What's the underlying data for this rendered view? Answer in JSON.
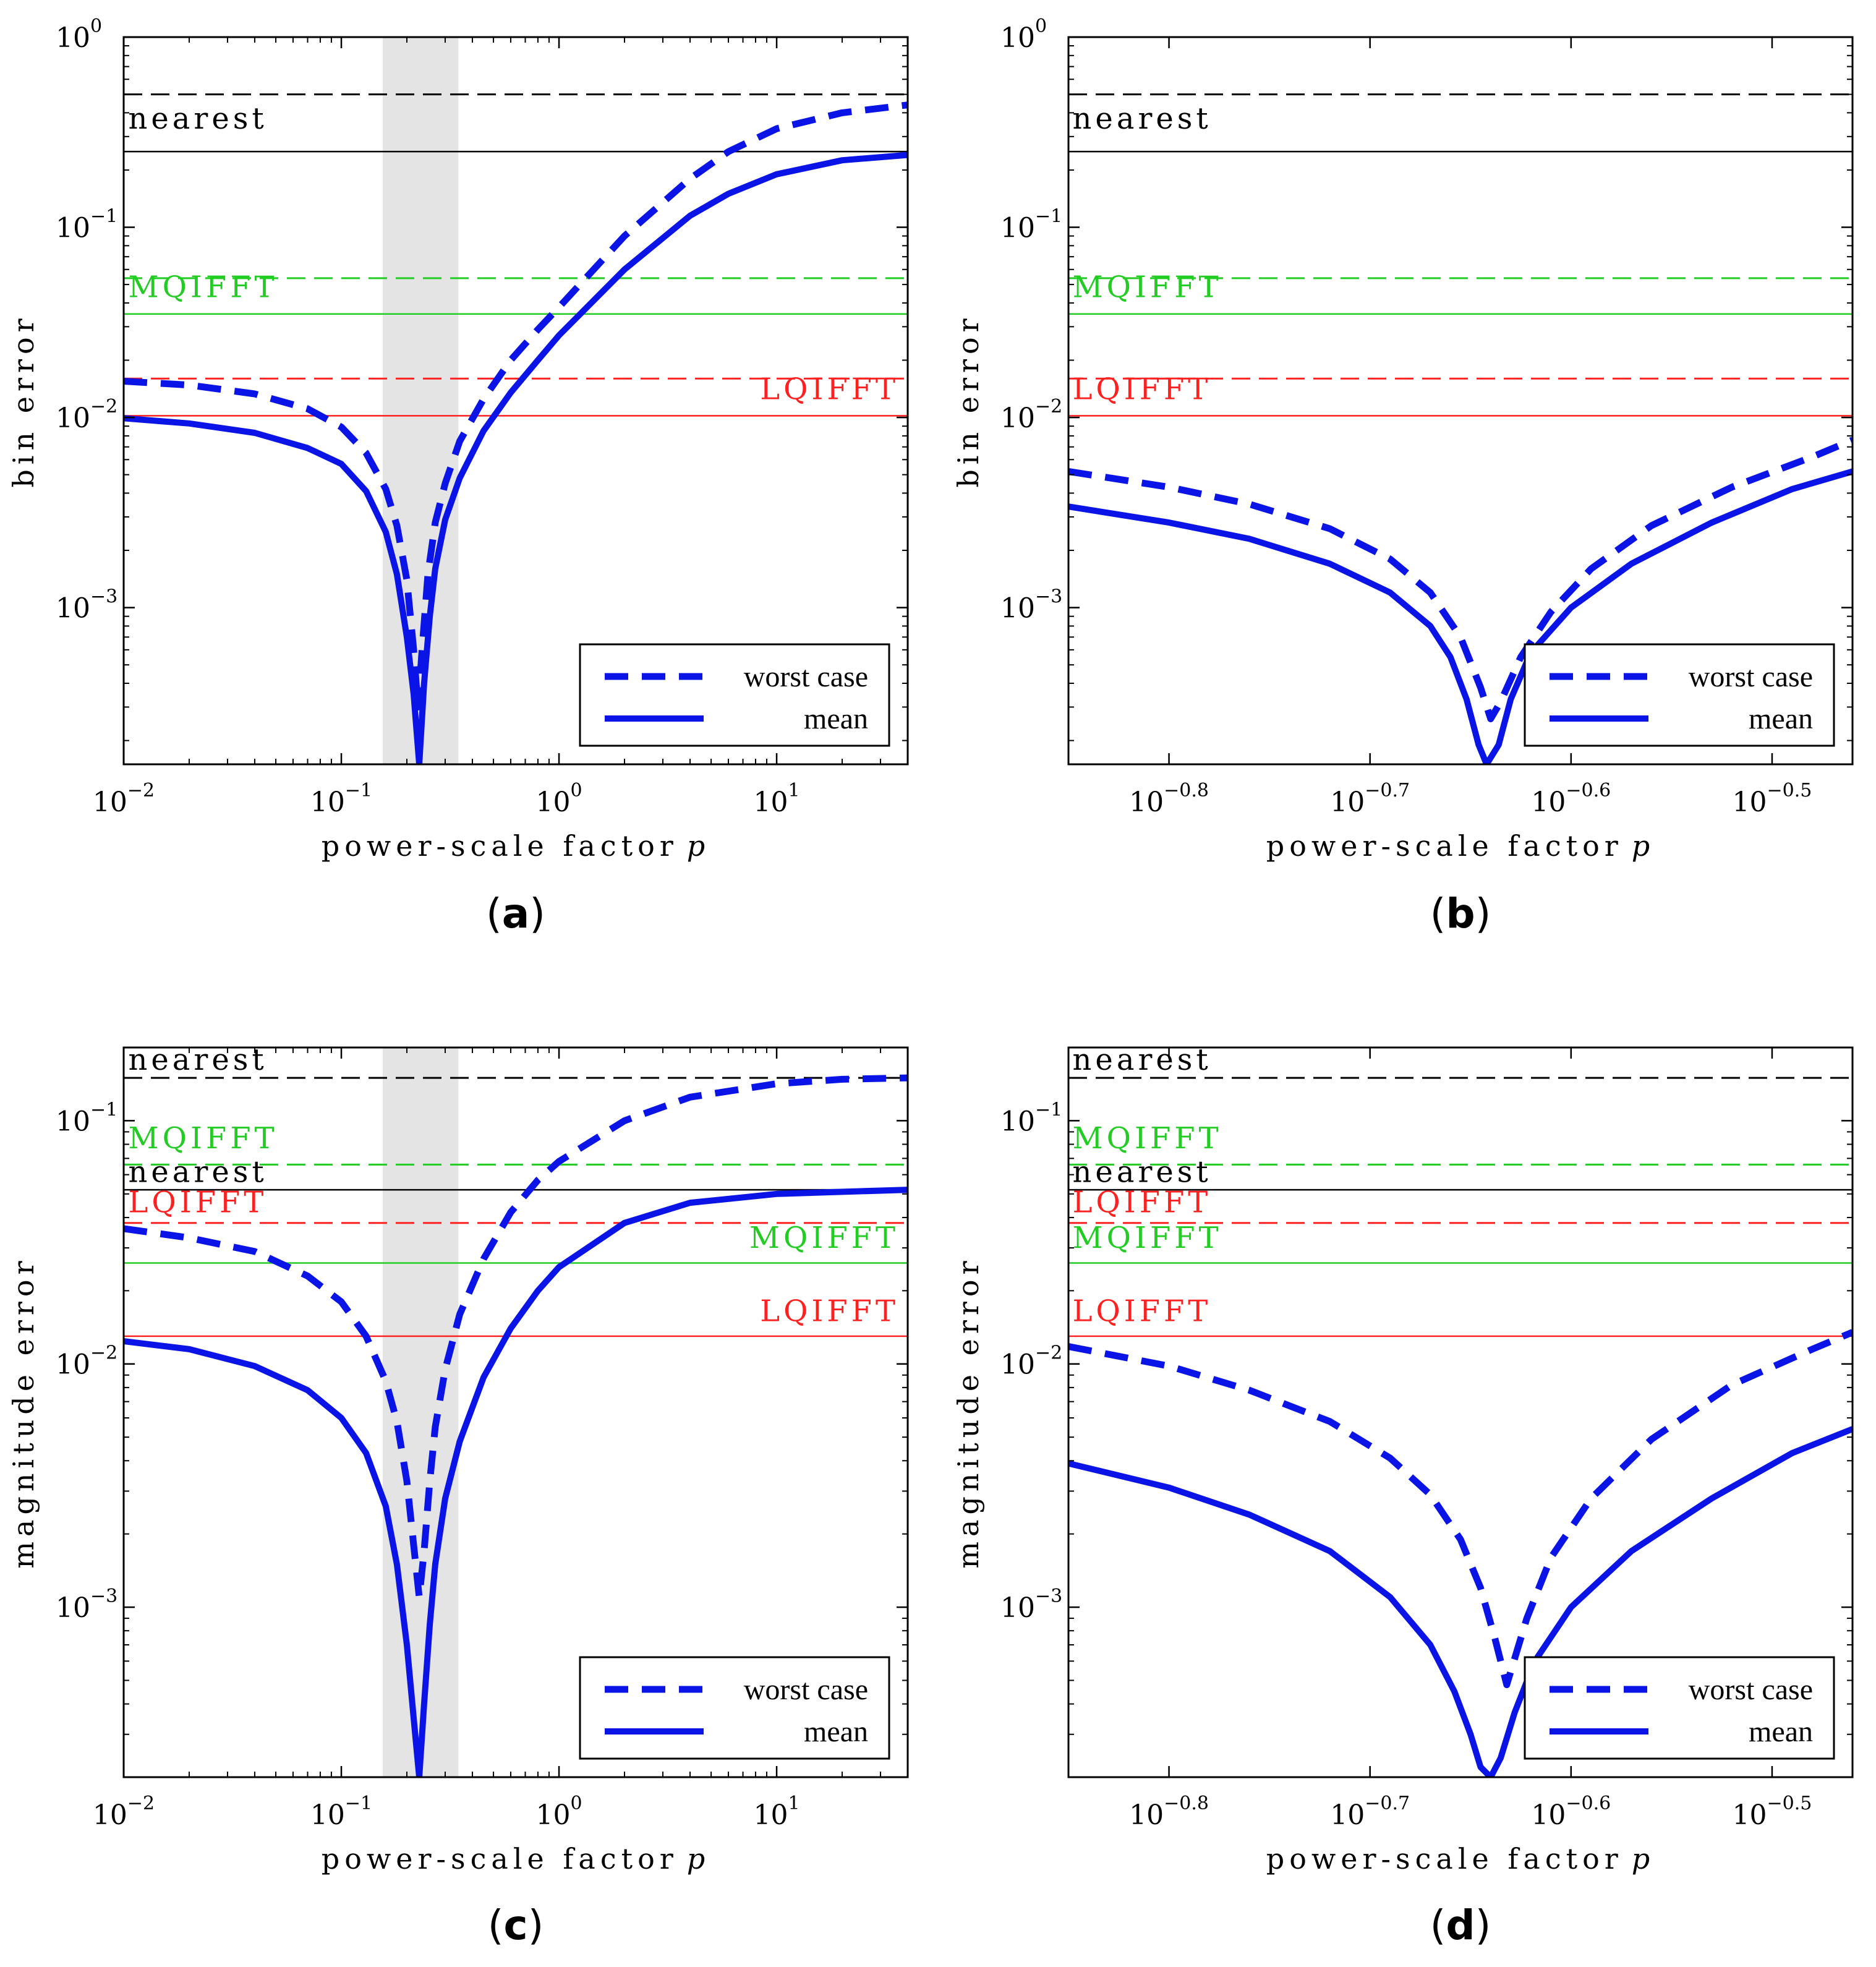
{
  "figure": {
    "panel_letters": [
      "a",
      "b",
      "c",
      "d"
    ]
  },
  "colors": {
    "curve": "#0a14e6",
    "nearest": "#000000",
    "mqifft": "#22cc22",
    "lqifft": "#ff2020",
    "shade": "#e4e4e4"
  },
  "chart_data": [
    {
      "id": "a",
      "type": "line",
      "panel_letter": "a",
      "xscale": "log",
      "yscale": "log",
      "xlabel": "power-scale factor",
      "xlabel_var": "p",
      "ylabel": "bin error",
      "xlim": [
        0.01,
        40
      ],
      "ylim": [
        0.00015,
        1
      ],
      "xticks": [
        {
          "value": 0.01,
          "base": "10",
          "exp": "−2"
        },
        {
          "value": 0.1,
          "base": "10",
          "exp": "−1"
        },
        {
          "value": 1,
          "base": "10",
          "exp": "0"
        },
        {
          "value": 10,
          "base": "10",
          "exp": "1"
        }
      ],
      "yticks": [
        {
          "value": 1,
          "base": "10",
          "exp": "0"
        },
        {
          "value": 0.1,
          "base": "10",
          "exp": "−1"
        },
        {
          "value": 0.01,
          "base": "10",
          "exp": "−2"
        },
        {
          "value": 0.001,
          "base": "10",
          "exp": "−3"
        }
      ],
      "shaded_region": [
        0.155,
        0.345
      ],
      "reference_lines": [
        {
          "method": "nearest",
          "stat": "worst case",
          "value": 0.5,
          "color": "#000000",
          "style": "dashed"
        },
        {
          "method": "nearest",
          "stat": "mean",
          "value": 0.25,
          "color": "#000000",
          "style": "solid"
        },
        {
          "method": "MQIFFT",
          "stat": "worst case",
          "value": 0.054,
          "color": "#22cc22",
          "style": "dashed"
        },
        {
          "method": "MQIFFT",
          "stat": "mean",
          "value": 0.035,
          "color": "#22cc22",
          "style": "solid"
        },
        {
          "method": "LQIFFT",
          "stat": "worst case",
          "value": 0.016,
          "color": "#ff2020",
          "style": "dashed"
        },
        {
          "method": "LQIFFT",
          "stat": "mean",
          "value": 0.0102,
          "color": "#ff2020",
          "style": "solid"
        }
      ],
      "reference_labels": [
        {
          "text": "nearest",
          "color": "#000000",
          "x": 0.0105,
          "y": 0.33,
          "anchor": "start"
        },
        {
          "text": "MQIFFT",
          "color": "#22cc22",
          "x": 0.0105,
          "y": 0.043,
          "anchor": "start"
        },
        {
          "text": "LQIFFT",
          "color": "#ff2020",
          "x": 38,
          "y": 0.0125,
          "anchor": "end"
        }
      ],
      "series": [
        {
          "name": "worst case",
          "style": "dashed",
          "x": [
            0.01,
            0.02,
            0.04,
            0.07,
            0.1,
            0.13,
            0.16,
            0.18,
            0.2,
            0.215,
            0.225,
            0.235,
            0.25,
            0.27,
            0.3,
            0.35,
            0.45,
            0.6,
            0.8,
            1,
            2,
            4,
            6,
            10,
            20,
            40
          ],
          "y": [
            0.0155,
            0.0148,
            0.0133,
            0.0111,
            0.0089,
            0.0065,
            0.0042,
            0.0027,
            0.0014,
            0.0006,
            0.0003,
            0.0006,
            0.0015,
            0.0028,
            0.0045,
            0.0075,
            0.0125,
            0.02,
            0.029,
            0.038,
            0.09,
            0.18,
            0.25,
            0.33,
            0.4,
            0.44
          ]
        },
        {
          "name": "mean",
          "style": "solid",
          "x": [
            0.01,
            0.02,
            0.04,
            0.07,
            0.1,
            0.13,
            0.16,
            0.18,
            0.2,
            0.215,
            0.228,
            0.24,
            0.255,
            0.27,
            0.3,
            0.35,
            0.45,
            0.6,
            0.8,
            1,
            2,
            4,
            6,
            10,
            20,
            40
          ],
          "y": [
            0.0099,
            0.0093,
            0.0083,
            0.0069,
            0.0057,
            0.0041,
            0.0025,
            0.0015,
            0.0007,
            0.00035,
            0.00015,
            0.0004,
            0.0009,
            0.0016,
            0.0029,
            0.0048,
            0.0085,
            0.0135,
            0.02,
            0.027,
            0.06,
            0.115,
            0.15,
            0.19,
            0.225,
            0.24
          ]
        }
      ],
      "legend": {
        "placement": "bottom-right",
        "entries": [
          "worst case",
          "mean"
        ]
      }
    },
    {
      "id": "b",
      "type": "line",
      "panel_letter": "b",
      "xscale": "log",
      "yscale": "log",
      "xlabel": "power-scale factor",
      "xlabel_var": "p",
      "ylabel": "bin error",
      "xlim": [
        -0.85,
        -0.46
      ],
      "xlim_units": "log10 of p",
      "ylim": [
        0.00015,
        1
      ],
      "xticks": [
        {
          "value": -0.8,
          "base": "10",
          "exp": "−0.8"
        },
        {
          "value": -0.7,
          "base": "10",
          "exp": "−0.7"
        },
        {
          "value": -0.6,
          "base": "10",
          "exp": "−0.6"
        },
        {
          "value": -0.5,
          "base": "10",
          "exp": "−0.5"
        }
      ],
      "yticks": [
        {
          "value": 1,
          "base": "10",
          "exp": "0"
        },
        {
          "value": 0.1,
          "base": "10",
          "exp": "−1"
        },
        {
          "value": 0.01,
          "base": "10",
          "exp": "−2"
        },
        {
          "value": 0.001,
          "base": "10",
          "exp": "−3"
        }
      ],
      "reference_lines": [
        {
          "method": "nearest",
          "stat": "worst case",
          "value": 0.5,
          "color": "#000000",
          "style": "dashed"
        },
        {
          "method": "nearest",
          "stat": "mean",
          "value": 0.25,
          "color": "#000000",
          "style": "solid"
        },
        {
          "method": "MQIFFT",
          "stat": "worst case",
          "value": 0.054,
          "color": "#22cc22",
          "style": "dashed"
        },
        {
          "method": "MQIFFT",
          "stat": "mean",
          "value": 0.035,
          "color": "#22cc22",
          "style": "solid"
        },
        {
          "method": "LQIFFT",
          "stat": "worst case",
          "value": 0.016,
          "color": "#ff2020",
          "style": "dashed"
        },
        {
          "method": "LQIFFT",
          "stat": "mean",
          "value": 0.0102,
          "color": "#ff2020",
          "style": "solid"
        }
      ],
      "reference_labels": [
        {
          "text": "nearest",
          "color": "#000000",
          "x": -0.848,
          "y": 0.33,
          "anchor": "start"
        },
        {
          "text": "MQIFFT",
          "color": "#22cc22",
          "x": -0.848,
          "y": 0.043,
          "anchor": "start"
        },
        {
          "text": "LQIFFT",
          "color": "#ff2020",
          "x": -0.848,
          "y": 0.0125,
          "anchor": "start"
        }
      ],
      "series": [
        {
          "name": "worst case",
          "style": "dashed",
          "x": [
            -0.85,
            -0.8,
            -0.76,
            -0.72,
            -0.69,
            -0.67,
            -0.655,
            -0.645,
            -0.64,
            -0.635,
            -0.625,
            -0.61,
            -0.59,
            -0.56,
            -0.52,
            -0.48,
            -0.46
          ],
          "y": [
            0.0052,
            0.0043,
            0.0035,
            0.0026,
            0.0018,
            0.0012,
            0.0007,
            0.00038,
            0.00026,
            0.00032,
            0.00055,
            0.00095,
            0.0016,
            0.0027,
            0.0043,
            0.0062,
            0.0076
          ]
        },
        {
          "name": "mean",
          "style": "solid",
          "x": [
            -0.85,
            -0.8,
            -0.76,
            -0.72,
            -0.69,
            -0.67,
            -0.66,
            -0.652,
            -0.646,
            -0.642,
            -0.636,
            -0.63,
            -0.62,
            -0.6,
            -0.57,
            -0.53,
            -0.49,
            -0.46
          ],
          "y": [
            0.0034,
            0.0028,
            0.0023,
            0.0017,
            0.0012,
            0.0008,
            0.00055,
            0.00033,
            0.00019,
            0.00015,
            0.00019,
            0.00033,
            0.00058,
            0.001,
            0.0017,
            0.0028,
            0.0042,
            0.0052
          ]
        }
      ],
      "legend": {
        "placement": "bottom-right",
        "entries": [
          "worst case",
          "mean"
        ]
      }
    },
    {
      "id": "c",
      "type": "line",
      "panel_letter": "c",
      "xscale": "log",
      "yscale": "log",
      "xlabel": "power-scale factor",
      "xlabel_var": "p",
      "ylabel": "magnitude error",
      "xlim": [
        0.01,
        40
      ],
      "ylim": [
        0.0002,
        0.2
      ],
      "xticks": [
        {
          "value": 0.01,
          "base": "10",
          "exp": "−2"
        },
        {
          "value": 0.1,
          "base": "10",
          "exp": "−1"
        },
        {
          "value": 1,
          "base": "10",
          "exp": "0"
        },
        {
          "value": 10,
          "base": "10",
          "exp": "1"
        }
      ],
      "yticks": [
        {
          "value": 0.1,
          "base": "10",
          "exp": "−1"
        },
        {
          "value": 0.01,
          "base": "10",
          "exp": "−2"
        },
        {
          "value": 0.001,
          "base": "10",
          "exp": "−3"
        }
      ],
      "shaded_region": [
        0.155,
        0.345
      ],
      "reference_lines": [
        {
          "method": "nearest",
          "stat": "worst case",
          "value": 0.15,
          "color": "#000000",
          "style": "dashed"
        },
        {
          "method": "MQIFFT",
          "stat": "worst case",
          "value": 0.066,
          "color": "#22cc22",
          "style": "dashed"
        },
        {
          "method": "nearest",
          "stat": "mean",
          "value": 0.052,
          "color": "#000000",
          "style": "solid"
        },
        {
          "method": "LQIFFT",
          "stat": "worst case",
          "value": 0.038,
          "color": "#ff2020",
          "style": "dashed"
        },
        {
          "method": "MQIFFT",
          "stat": "mean",
          "value": 0.026,
          "color": "#22cc22",
          "style": "solid"
        },
        {
          "method": "LQIFFT",
          "stat": "mean",
          "value": 0.013,
          "color": "#ff2020",
          "style": "solid"
        }
      ],
      "reference_labels": [
        {
          "text": "nearest",
          "color": "#000000",
          "x": 0.0105,
          "y": 0.162,
          "anchor": "start"
        },
        {
          "text": "MQIFFT",
          "color": "#22cc22",
          "x": 0.0105,
          "y": 0.077,
          "anchor": "start"
        },
        {
          "text": "nearest",
          "color": "#000000",
          "x": 0.0105,
          "y": 0.056,
          "anchor": "start"
        },
        {
          "text": "LQIFFT",
          "color": "#ff2020",
          "x": 0.0105,
          "y": 0.042,
          "anchor": "start"
        },
        {
          "text": "MQIFFT",
          "color": "#22cc22",
          "x": 38,
          "y": 0.03,
          "anchor": "end"
        },
        {
          "text": "LQIFFT",
          "color": "#ff2020",
          "x": 38,
          "y": 0.015,
          "anchor": "end"
        }
      ],
      "series": [
        {
          "name": "worst case",
          "style": "dashed",
          "x": [
            0.01,
            0.02,
            0.04,
            0.07,
            0.1,
            0.13,
            0.16,
            0.18,
            0.2,
            0.215,
            0.228,
            0.24,
            0.255,
            0.27,
            0.3,
            0.35,
            0.45,
            0.6,
            0.8,
            1,
            2,
            4,
            10,
            20,
            40
          ],
          "y": [
            0.036,
            0.033,
            0.029,
            0.023,
            0.018,
            0.013,
            0.0085,
            0.0058,
            0.0033,
            0.0018,
            0.0011,
            0.0017,
            0.0033,
            0.0055,
            0.0095,
            0.016,
            0.027,
            0.042,
            0.057,
            0.068,
            0.1,
            0.125,
            0.142,
            0.148,
            0.15
          ]
        },
        {
          "name": "mean",
          "style": "solid",
          "x": [
            0.01,
            0.02,
            0.04,
            0.07,
            0.1,
            0.13,
            0.16,
            0.18,
            0.2,
            0.215,
            0.228,
            0.24,
            0.255,
            0.27,
            0.3,
            0.35,
            0.45,
            0.6,
            0.8,
            1,
            2,
            4,
            10,
            20,
            40
          ],
          "y": [
            0.0124,
            0.0115,
            0.0098,
            0.0078,
            0.006,
            0.0043,
            0.0026,
            0.0015,
            0.0007,
            0.00035,
            0.0002,
            0.0004,
            0.00085,
            0.0015,
            0.0028,
            0.0048,
            0.0088,
            0.014,
            0.02,
            0.025,
            0.038,
            0.046,
            0.05,
            0.051,
            0.052
          ]
        }
      ],
      "legend": {
        "placement": "bottom-right",
        "entries": [
          "worst case",
          "mean"
        ]
      }
    },
    {
      "id": "d",
      "type": "line",
      "panel_letter": "d",
      "xscale": "log",
      "yscale": "log",
      "xlabel": "power-scale factor",
      "xlabel_var": "p",
      "ylabel": "magnitude error",
      "xlim": [
        -0.85,
        -0.46
      ],
      "xlim_units": "log10 of p",
      "ylim": [
        0.0002,
        0.2
      ],
      "xticks": [
        {
          "value": -0.8,
          "base": "10",
          "exp": "−0.8"
        },
        {
          "value": -0.7,
          "base": "10",
          "exp": "−0.7"
        },
        {
          "value": -0.6,
          "base": "10",
          "exp": "−0.6"
        },
        {
          "value": -0.5,
          "base": "10",
          "exp": "−0.5"
        }
      ],
      "yticks": [
        {
          "value": 0.1,
          "base": "10",
          "exp": "−1"
        },
        {
          "value": 0.01,
          "base": "10",
          "exp": "−2"
        },
        {
          "value": 0.001,
          "base": "10",
          "exp": "−3"
        }
      ],
      "reference_lines": [
        {
          "method": "nearest",
          "stat": "worst case",
          "value": 0.15,
          "color": "#000000",
          "style": "dashed"
        },
        {
          "method": "MQIFFT",
          "stat": "worst case",
          "value": 0.066,
          "color": "#22cc22",
          "style": "dashed"
        },
        {
          "method": "nearest",
          "stat": "mean",
          "value": 0.052,
          "color": "#000000",
          "style": "solid"
        },
        {
          "method": "LQIFFT",
          "stat": "worst case",
          "value": 0.038,
          "color": "#ff2020",
          "style": "dashed"
        },
        {
          "method": "MQIFFT",
          "stat": "mean",
          "value": 0.026,
          "color": "#22cc22",
          "style": "solid"
        },
        {
          "method": "LQIFFT",
          "stat": "mean",
          "value": 0.013,
          "color": "#ff2020",
          "style": "solid"
        }
      ],
      "reference_labels": [
        {
          "text": "nearest",
          "color": "#000000",
          "x": -0.848,
          "y": 0.162,
          "anchor": "start"
        },
        {
          "text": "MQIFFT",
          "color": "#22cc22",
          "x": -0.848,
          "y": 0.077,
          "anchor": "start"
        },
        {
          "text": "nearest",
          "color": "#000000",
          "x": -0.848,
          "y": 0.056,
          "anchor": "start"
        },
        {
          "text": "LQIFFT",
          "color": "#ff2020",
          "x": -0.848,
          "y": 0.042,
          "anchor": "start"
        },
        {
          "text": "MQIFFT",
          "color": "#22cc22",
          "x": -0.848,
          "y": 0.03,
          "anchor": "start"
        },
        {
          "text": "LQIFFT",
          "color": "#ff2020",
          "x": -0.848,
          "y": 0.015,
          "anchor": "start"
        }
      ],
      "series": [
        {
          "name": "worst case",
          "style": "dashed",
          "x": [
            -0.85,
            -0.8,
            -0.76,
            -0.72,
            -0.69,
            -0.67,
            -0.655,
            -0.645,
            -0.638,
            -0.632,
            -0.622,
            -0.61,
            -0.59,
            -0.56,
            -0.52,
            -0.48,
            -0.46
          ],
          "y": [
            0.0118,
            0.0098,
            0.0078,
            0.0058,
            0.0041,
            0.0029,
            0.0019,
            0.0012,
            0.00075,
            0.00048,
            0.0009,
            0.0016,
            0.0028,
            0.0049,
            0.0082,
            0.0115,
            0.0135
          ]
        },
        {
          "name": "mean",
          "style": "solid",
          "x": [
            -0.85,
            -0.8,
            -0.76,
            -0.72,
            -0.69,
            -0.67,
            -0.658,
            -0.65,
            -0.645,
            -0.64,
            -0.635,
            -0.628,
            -0.618,
            -0.6,
            -0.57,
            -0.53,
            -0.49,
            -0.46
          ],
          "y": [
            0.0039,
            0.0031,
            0.0024,
            0.0017,
            0.0011,
            0.0007,
            0.00045,
            0.0003,
            0.00022,
            0.0002,
            0.00024,
            0.00037,
            0.0006,
            0.001,
            0.0017,
            0.0028,
            0.0043,
            0.0054
          ]
        }
      ],
      "legend": {
        "placement": "bottom-right",
        "entries": [
          "worst case",
          "mean"
        ]
      }
    }
  ]
}
